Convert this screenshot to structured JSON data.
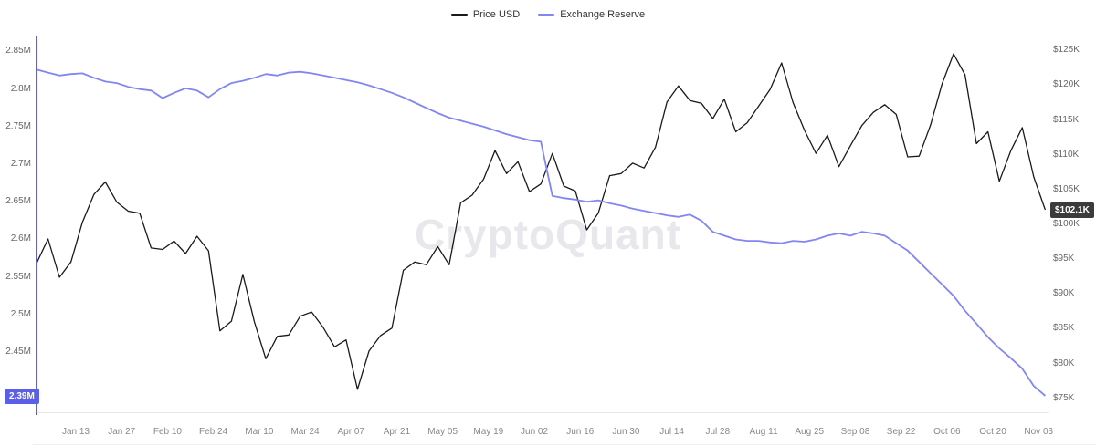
{
  "watermark": "CryptoQuant",
  "legend": [
    {
      "label": "Price USD",
      "color": "#1a1a1a"
    },
    {
      "label": "Exchange Reserve",
      "color": "#8286f0"
    }
  ],
  "chart_data": {
    "type": "line",
    "title": "",
    "x_start": 0,
    "x_step": 3.5,
    "x_range": [
      0,
      309
    ],
    "x_axis": {
      "tick_days": [
        12,
        26,
        40,
        54,
        68,
        82,
        96,
        110,
        124,
        138,
        152,
        166,
        180,
        194,
        208,
        222,
        236,
        250,
        264,
        278,
        292,
        306
      ],
      "tick_labels": [
        "Jan 13",
        "Jan 27",
        "Feb 10",
        "Feb 24",
        "Mar 10",
        "Mar 24",
        "Apr 07",
        "Apr 21",
        "May 05",
        "May 19",
        "Jun 02",
        "Jun 16",
        "Jun 30",
        "Jul 14",
        "Jul 28",
        "Aug 11",
        "Aug 25",
        "Sep 08",
        "Sep 22",
        "Oct 06",
        "Oct 20",
        "Nov 03"
      ]
    },
    "left_axis": {
      "name": "Exchange Reserve (BTC)",
      "range": [
        2.37,
        2.87
      ],
      "tick_values": [
        2.85,
        2.8,
        2.75,
        2.7,
        2.65,
        2.6,
        2.55,
        2.5,
        2.45
      ],
      "tick_labels": [
        "2.85M",
        "2.8M",
        "2.75M",
        "2.7M",
        "2.65M",
        "2.6M",
        "2.55M",
        "2.5M",
        "2.45M"
      ],
      "color": "#5a5ee8",
      "badge_color": "#5a5ee8",
      "current": {
        "value": 2.392,
        "label": "2.39M"
      }
    },
    "right_axis": {
      "name": "Price USD (thousands)",
      "range": [
        73,
        127
      ],
      "tick_values": [
        125,
        120,
        115,
        110,
        105,
        100,
        95,
        90,
        85,
        80,
        75
      ],
      "tick_labels": [
        "$125K",
        "$120K",
        "$115K",
        "$110K",
        "$105K",
        "$100K",
        "$95K",
        "$90K",
        "$85K",
        "$80K",
        "$75K"
      ],
      "color": "#3b3b3b",
      "badge_color": "#3b3b3b",
      "current": {
        "value": 102.1,
        "label": "$102.1K"
      }
    },
    "series": [
      {
        "name": "Price USD",
        "axis": "right",
        "unit": "USD thousands",
        "color": "#1a1a1a",
        "width": 1.3,
        "values": [
          94.4,
          97.9,
          92.4,
          94.6,
          100.3,
          104.3,
          106.1,
          103.2,
          101.9,
          101.6,
          96.6,
          96.4,
          97.6,
          95.8,
          98.3,
          96.2,
          84.7,
          86.1,
          92.8,
          86.0,
          80.7,
          83.9,
          84.1,
          86.8,
          87.4,
          85.2,
          82.4,
          83.4,
          76.3,
          81.8,
          84.0,
          85.1,
          93.4,
          94.6,
          94.2,
          96.8,
          94.2,
          103.1,
          104.2,
          106.5,
          110.6,
          107.3,
          109.0,
          104.7,
          105.8,
          110.2,
          105.5,
          104.8,
          99.2,
          101.6,
          107.0,
          107.3,
          108.8,
          108.1,
          111.1,
          117.6,
          119.9,
          117.8,
          117.4,
          115.2,
          118.0,
          113.3,
          114.6,
          117.0,
          119.4,
          123.2,
          117.5,
          113.5,
          110.2,
          112.8,
          108.3,
          111.3,
          114.2,
          116.1,
          117.2,
          115.8,
          109.7,
          109.8,
          114.3,
          120.2,
          124.5,
          121.5,
          111.6,
          113.3,
          106.2,
          110.6,
          113.9,
          106.8,
          102.1
        ]
      },
      {
        "name": "Exchange Reserve",
        "axis": "left",
        "unit": "M BTC",
        "color": "#8286f0",
        "width": 1.8,
        "values": [
          2.826,
          2.822,
          2.818,
          2.82,
          2.821,
          2.815,
          2.81,
          2.808,
          2.803,
          2.8,
          2.798,
          2.788,
          2.795,
          2.801,
          2.798,
          2.789,
          2.8,
          2.808,
          2.811,
          2.815,
          2.82,
          2.818,
          2.822,
          2.823,
          2.821,
          2.818,
          2.815,
          2.812,
          2.809,
          2.805,
          2.8,
          2.795,
          2.789,
          2.782,
          2.775,
          2.768,
          2.762,
          2.758,
          2.754,
          2.75,
          2.745,
          2.74,
          2.736,
          2.732,
          2.73,
          2.658,
          2.655,
          2.653,
          2.65,
          2.652,
          2.648,
          2.645,
          2.641,
          2.638,
          2.635,
          2.632,
          2.63,
          2.633,
          2.625,
          2.61,
          2.605,
          2.6,
          2.598,
          2.598,
          2.596,
          2.595,
          2.598,
          2.597,
          2.6,
          2.605,
          2.608,
          2.605,
          2.61,
          2.608,
          2.605,
          2.595,
          2.585,
          2.57,
          2.555,
          2.54,
          2.525,
          2.505,
          2.488,
          2.47,
          2.455,
          2.442,
          2.428,
          2.405,
          2.392
        ]
      }
    ]
  }
}
